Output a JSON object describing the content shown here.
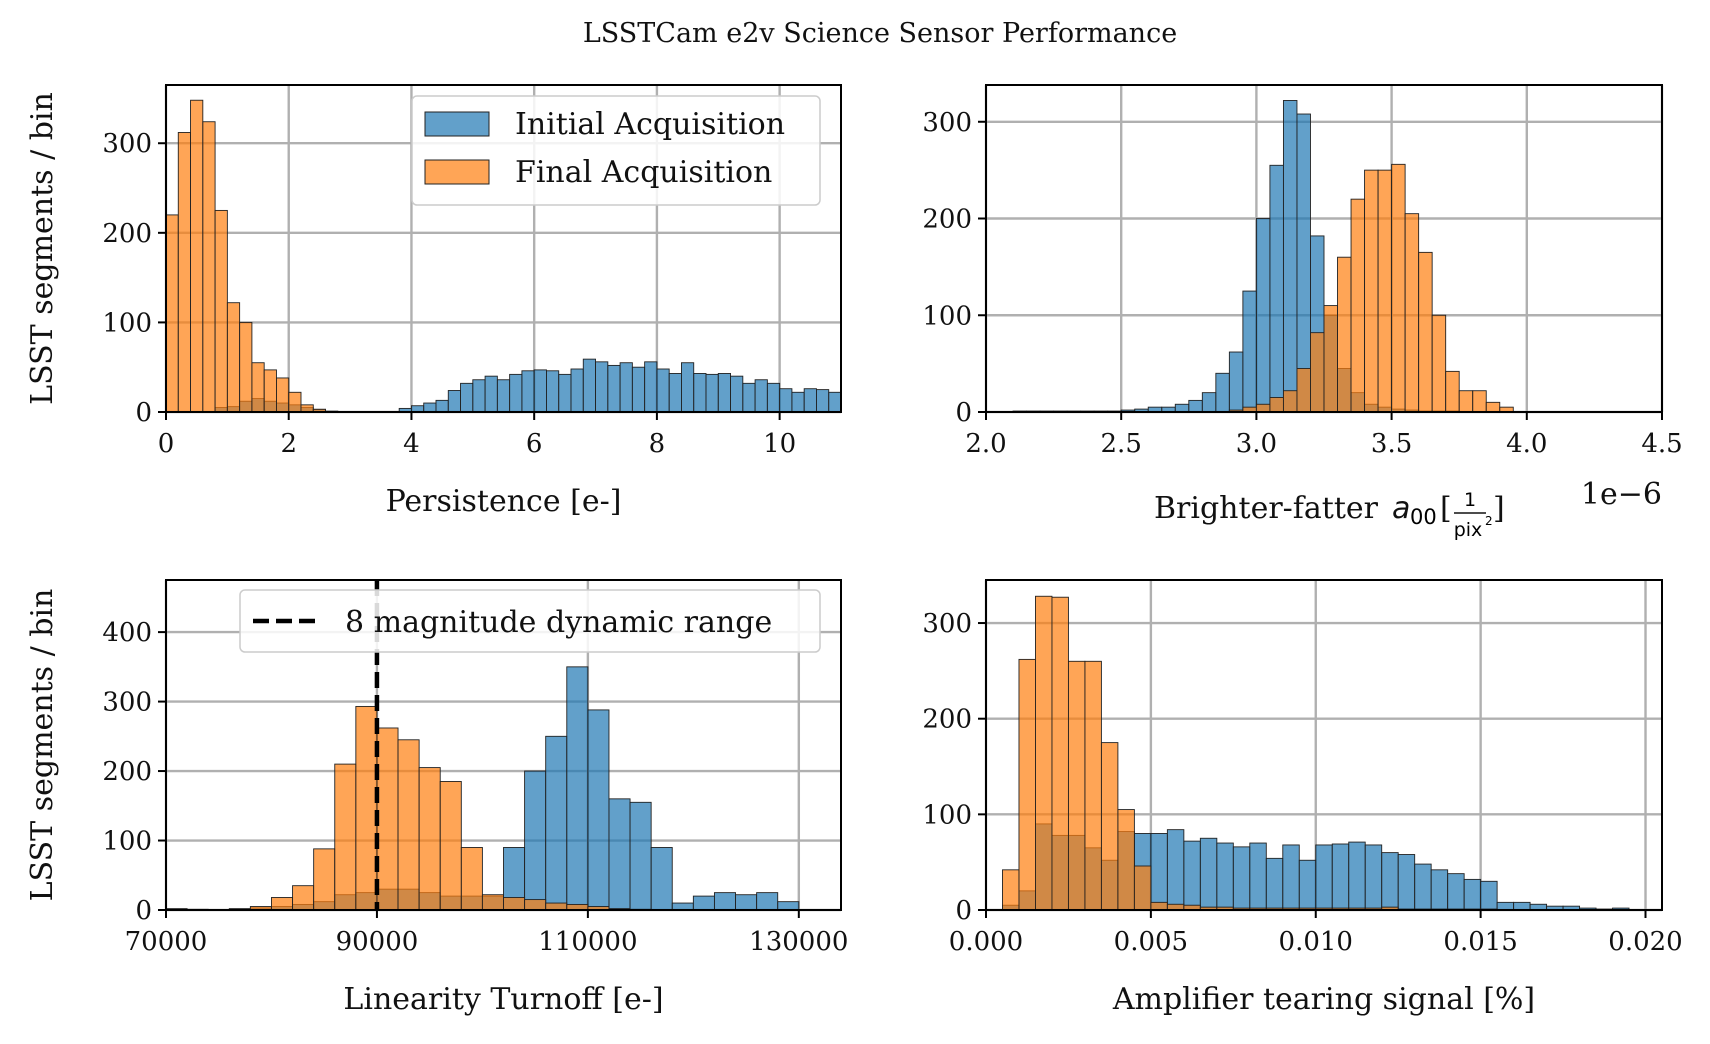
{
  "figure": {
    "title": "LSSTCam e2v Science Sensor Performance"
  },
  "colors": {
    "initial": "#1f77b4",
    "final": "#ff7f0e",
    "grid": "#b0b0b0"
  },
  "chart_data": [
    {
      "id": "persistence",
      "type": "bar",
      "xlabel": "Persistence [e-]",
      "ylabel": "LSST segments / bin",
      "xlim": [
        0,
        11
      ],
      "ylim": [
        0,
        365
      ],
      "xticks": [
        0,
        2,
        4,
        6,
        8,
        10
      ],
      "yticks": [
        0,
        100,
        200,
        300
      ],
      "grid": true,
      "legend_position": "top-right",
      "series": [
        {
          "name": "Initial Acquisition",
          "bin_width": 0.2,
          "bin_start": 0.8,
          "values": [
            5,
            6,
            12,
            15,
            12,
            10,
            8,
            5,
            3,
            0,
            0,
            0,
            0,
            0,
            0,
            4,
            7,
            10,
            13,
            24,
            32,
            36,
            40,
            36,
            42,
            46,
            47,
            46,
            42,
            48,
            59,
            56,
            52,
            55,
            50,
            56,
            48,
            43,
            55,
            43,
            42,
            43,
            40,
            32,
            36,
            32,
            26,
            22,
            26,
            25,
            22,
            33,
            22
          ]
        },
        {
          "name": "Final Acquisition",
          "bin_width": 0.2,
          "bin_start": 0.0,
          "values": [
            220,
            312,
            348,
            324,
            225,
            122,
            100,
            55,
            47,
            38,
            22,
            8,
            3,
            1
          ]
        }
      ]
    },
    {
      "id": "brighter-fatter",
      "type": "bar",
      "xlabel": "Brighter-fatter",
      "xlabel_math": {
        "symbol": "a",
        "subscript": "00",
        "unit_num": "1",
        "unit_den": "pix",
        "unit_den_sup": "2"
      },
      "xoffset": "1e−6",
      "ylabel": "",
      "xlim": [
        2.0,
        4.5
      ],
      "ylim": [
        0,
        338
      ],
      "xticks": [
        "2.0",
        "2.5",
        "3.0",
        "3.5",
        "4.0",
        "4.5"
      ],
      "xtick_values": [
        2.0,
        2.5,
        3.0,
        3.5,
        4.0,
        4.5
      ],
      "yticks": [
        0,
        100,
        200,
        300
      ],
      "grid": true,
      "series": [
        {
          "name": "Initial Acquisition",
          "bin_width": 0.05,
          "bin_start": 2.1,
          "values": [
            1,
            1,
            1,
            1,
            1,
            1,
            1,
            1,
            2,
            3,
            5,
            5,
            8,
            12,
            20,
            40,
            62,
            125,
            200,
            255,
            322,
            308,
            182,
            100,
            45,
            20,
            8,
            5,
            3,
            2,
            1,
            1,
            1
          ]
        },
        {
          "name": "Final Acquisition",
          "bin_width": 0.05,
          "bin_start": 2.9,
          "values": [
            2,
            5,
            8,
            15,
            22,
            45,
            82,
            110,
            160,
            220,
            250,
            250,
            256,
            205,
            165,
            100,
            42,
            22,
            22,
            10,
            5
          ]
        }
      ]
    },
    {
      "id": "linearity",
      "type": "bar",
      "xlabel": "Linearity Turnoff [e-]",
      "ylabel": "LSST segments / bin",
      "xlim": [
        70000,
        134000
      ],
      "ylim": [
        0,
        475
      ],
      "xticks": [
        70000,
        90000,
        110000,
        130000
      ],
      "yticks": [
        0,
        100,
        200,
        300,
        400
      ],
      "grid": true,
      "legend_position": "top-right",
      "vline": {
        "x": 90000,
        "label": "8 magnitude dynamic range"
      },
      "series": [
        {
          "name": "Initial Acquisition",
          "bin_width": 2000,
          "bin_start": 70000,
          "values": [
            2,
            1,
            0,
            0,
            3,
            5,
            8,
            12,
            22,
            25,
            30,
            30,
            25,
            20,
            20,
            20,
            90,
            200,
            250,
            350,
            288,
            160,
            155,
            90,
            10,
            20,
            25,
            22,
            25,
            12
          ]
        },
        {
          "name": "Final Acquisition",
          "bin_width": 2000,
          "bin_start": 70000,
          "values": [
            0,
            0,
            0,
            2,
            5,
            18,
            35,
            88,
            210,
            293,
            262,
            245,
            205,
            185,
            90,
            22,
            18,
            15,
            10,
            8,
            5,
            2,
            1,
            0,
            0,
            0,
            0,
            0,
            0,
            0
          ]
        }
      ]
    },
    {
      "id": "tearing",
      "type": "bar",
      "xlabel": "Amplifier tearing signal [%]",
      "ylabel": "",
      "xlim": [
        0.0,
        0.0205
      ],
      "ylim": [
        0,
        345
      ],
      "xticks": [
        "0.000",
        "0.005",
        "0.010",
        "0.015",
        "0.020"
      ],
      "xtick_values": [
        0.0,
        0.005,
        0.01,
        0.015,
        0.02
      ],
      "yticks": [
        0,
        100,
        200,
        300
      ],
      "grid": true,
      "series": [
        {
          "name": "Initial Acquisition",
          "bin_width": 0.0005,
          "bin_start": 0.0005,
          "values": [
            5,
            20,
            90,
            78,
            78,
            65,
            52,
            82,
            80,
            80,
            84,
            72,
            75,
            70,
            66,
            70,
            54,
            68,
            52,
            68,
            69,
            71,
            68,
            60,
            58,
            48,
            42,
            38,
            32,
            30,
            8,
            8,
            6,
            4,
            4,
            2,
            1,
            2
          ]
        },
        {
          "name": "Final Acquisition",
          "bin_width": 0.0005,
          "bin_start": 0.0005,
          "values": [
            42,
            262,
            328,
            327,
            260,
            260,
            175,
            105,
            46,
            8,
            6,
            5,
            3,
            3,
            2,
            2,
            2,
            2,
            2,
            2,
            2,
            2,
            2,
            3,
            1,
            1,
            1,
            1,
            1,
            1,
            0,
            0,
            0,
            0,
            0,
            0,
            0,
            0
          ]
        }
      ]
    }
  ]
}
